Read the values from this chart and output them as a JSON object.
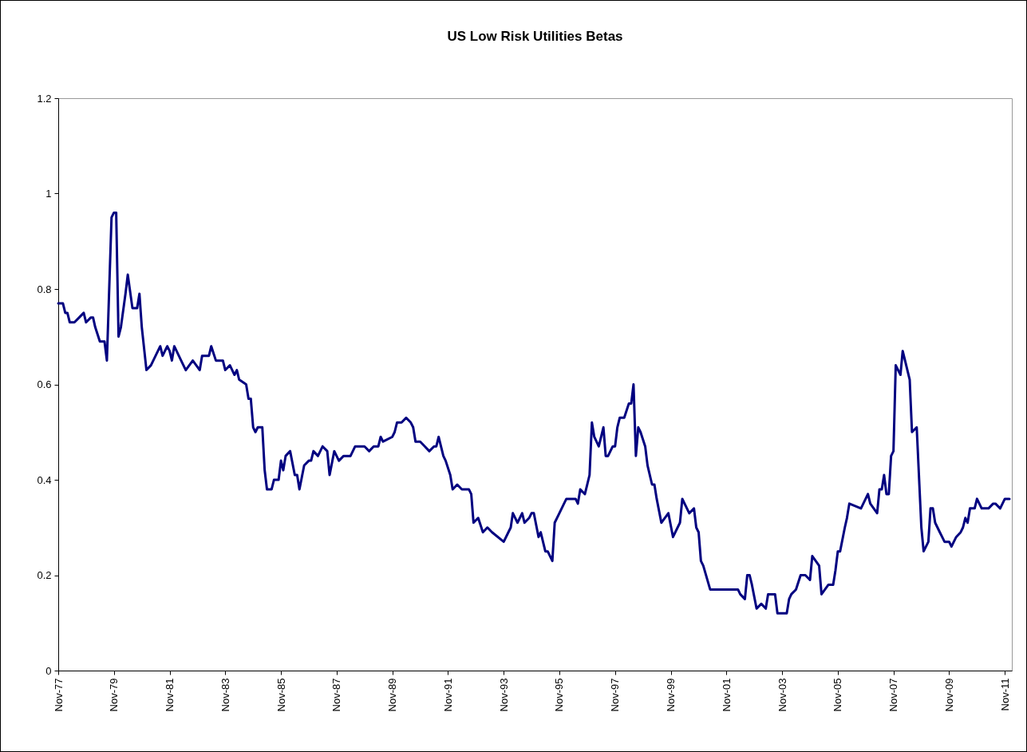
{
  "chart_data": {
    "type": "line",
    "title": "US Low Risk Utilities Betas",
    "x": [
      "1977-11",
      "1978-01",
      "1978-02",
      "1978-03",
      "1978-04",
      "1978-06",
      "1978-08",
      "1978-10",
      "1978-11",
      "1979-01",
      "1979-02",
      "1979-03",
      "1979-05",
      "1979-07",
      "1979-08",
      "1979-10",
      "1979-11",
      "1979-12",
      "1980-01",
      "1980-02",
      "1980-04",
      "1980-05",
      "1980-07",
      "1980-09",
      "1980-10",
      "1980-11",
      "1981-01",
      "1981-03",
      "1981-05",
      "1981-07",
      "1981-08",
      "1981-10",
      "1981-11",
      "1981-12",
      "1982-01",
      "1982-04",
      "1982-06",
      "1982-09",
      "1982-12",
      "1983-01",
      "1983-04",
      "1983-05",
      "1983-07",
      "1983-10",
      "1983-11",
      "1984-01",
      "1984-03",
      "1984-04",
      "1984-05",
      "1984-08",
      "1984-09",
      "1984-10",
      "1984-11",
      "1984-12",
      "1985-01",
      "1985-03",
      "1985-04",
      "1985-05",
      "1985-07",
      "1985-08",
      "1985-10",
      "1985-11",
      "1985-12",
      "1986-01",
      "1986-03",
      "1986-05",
      "1986-06",
      "1986-07",
      "1986-09",
      "1986-11",
      "1986-12",
      "1987-01",
      "1987-03",
      "1987-05",
      "1987-07",
      "1987-08",
      "1987-10",
      "1987-12",
      "1988-02",
      "1988-05",
      "1988-07",
      "1988-11",
      "1989-01",
      "1989-03",
      "1989-05",
      "1989-06",
      "1989-07",
      "1989-11",
      "1989-12",
      "1990-01",
      "1990-03",
      "1990-05",
      "1990-07",
      "1990-08",
      "1990-09",
      "1990-11",
      "1991-01",
      "1991-03",
      "1991-05",
      "1991-06",
      "1991-07",
      "1991-09",
      "1991-10",
      "1991-12",
      "1992-01",
      "1992-03",
      "1992-05",
      "1992-08",
      "1992-09",
      "1992-10",
      "1992-12",
      "1993-02",
      "1993-04",
      "1993-06",
      "1993-11",
      "1994-01",
      "1994-02",
      "1994-03",
      "1994-05",
      "1994-07",
      "1994-08",
      "1994-10",
      "1994-11",
      "1994-12",
      "1995-02",
      "1995-03",
      "1995-05",
      "1995-06",
      "1995-08",
      "1995-09",
      "1995-11",
      "1996-01",
      "1996-02",
      "1996-06",
      "1996-07",
      "1996-08",
      "1996-10",
      "1996-11",
      "1996-12",
      "1997-01",
      "1997-02",
      "1997-04",
      "1997-06",
      "1997-07",
      "1997-08",
      "1997-10",
      "1997-11",
      "1997-12",
      "1998-01",
      "1998-03",
      "1998-05",
      "1998-06",
      "1998-07",
      "1998-08",
      "1998-09",
      "1998-10",
      "1998-12",
      "1999-01",
      "1999-03",
      "1999-04",
      "1999-05",
      "1999-07",
      "1999-10",
      "1999-12",
      "2000-03",
      "2000-04",
      "2000-05",
      "2000-07",
      "2000-09",
      "2000-10",
      "2000-11",
      "2000-12",
      "2001-01",
      "2001-04",
      "2001-06",
      "2001-07",
      "2001-09",
      "2001-12",
      "2002-02",
      "2002-04",
      "2002-05",
      "2002-07",
      "2002-08",
      "2002-09",
      "2002-10",
      "2002-12",
      "2003-02",
      "2003-04",
      "2003-05",
      "2003-08",
      "2003-09",
      "2003-12",
      "2004-01",
      "2004-02",
      "2004-03",
      "2004-05",
      "2004-07",
      "2004-09",
      "2004-11",
      "2004-12",
      "2005-03",
      "2005-04",
      "2005-07",
      "2005-09",
      "2005-10",
      "2005-11",
      "2005-12",
      "2006-02",
      "2006-03",
      "2006-04",
      "2006-09",
      "2006-12",
      "2007-01",
      "2007-04",
      "2007-05",
      "2007-06",
      "2007-07",
      "2007-08",
      "2007-09",
      "2007-10",
      "2007-11",
      "2007-12",
      "2008-02",
      "2008-03",
      "2008-04",
      "2008-06",
      "2008-07",
      "2008-09",
      "2008-11",
      "2008-12",
      "2009-02",
      "2009-03",
      "2009-04",
      "2009-05",
      "2009-07",
      "2009-08",
      "2009-09",
      "2009-11",
      "2009-12",
      "2010-02",
      "2010-04",
      "2010-05",
      "2010-06",
      "2010-07",
      "2010-08",
      "2010-10",
      "2010-11",
      "2011-01",
      "2011-04",
      "2011-06",
      "2011-07",
      "2011-09",
      "2011-11",
      "2012-01"
    ],
    "series": [
      {
        "color": "#000080",
        "values": [
          0.77,
          0.77,
          0.75,
          0.75,
          0.73,
          0.73,
          0.74,
          0.75,
          0.73,
          0.74,
          0.74,
          0.72,
          0.69,
          0.69,
          0.65,
          0.95,
          0.96,
          0.96,
          0.7,
          0.72,
          0.79,
          0.83,
          0.76,
          0.76,
          0.79,
          0.72,
          0.63,
          0.64,
          0.66,
          0.68,
          0.66,
          0.68,
          0.67,
          0.65,
          0.68,
          0.65,
          0.63,
          0.65,
          0.63,
          0.66,
          0.66,
          0.68,
          0.65,
          0.65,
          0.63,
          0.64,
          0.62,
          0.63,
          0.61,
          0.6,
          0.57,
          0.57,
          0.51,
          0.5,
          0.51,
          0.51,
          0.42,
          0.38,
          0.38,
          0.4,
          0.4,
          0.44,
          0.42,
          0.45,
          0.46,
          0.41,
          0.41,
          0.38,
          0.43,
          0.44,
          0.44,
          0.46,
          0.45,
          0.47,
          0.46,
          0.41,
          0.46,
          0.44,
          0.45,
          0.45,
          0.47,
          0.47,
          0.46,
          0.47,
          0.47,
          0.49,
          0.48,
          0.49,
          0.5,
          0.52,
          0.52,
          0.53,
          0.52,
          0.51,
          0.48,
          0.48,
          0.47,
          0.46,
          0.47,
          0.47,
          0.49,
          0.45,
          0.44,
          0.41,
          0.38,
          0.39,
          0.38,
          0.38,
          0.37,
          0.31,
          0.32,
          0.29,
          0.3,
          0.29,
          0.27,
          0.29,
          0.3,
          0.33,
          0.31,
          0.33,
          0.31,
          0.32,
          0.33,
          0.33,
          0.28,
          0.29,
          0.25,
          0.25,
          0.23,
          0.31,
          0.33,
          0.35,
          0.36,
          0.36,
          0.35,
          0.38,
          0.37,
          0.39,
          0.41,
          0.52,
          0.49,
          0.47,
          0.51,
          0.45,
          0.45,
          0.47,
          0.47,
          0.51,
          0.53,
          0.53,
          0.56,
          0.56,
          0.6,
          0.45,
          0.51,
          0.5,
          0.47,
          0.43,
          0.39,
          0.39,
          0.36,
          0.31,
          0.33,
          0.28,
          0.31,
          0.36,
          0.35,
          0.33,
          0.34,
          0.3,
          0.29,
          0.23,
          0.22,
          0.17,
          0.17,
          0.17,
          0.17,
          0.17,
          0.17,
          0.17,
          0.16,
          0.15,
          0.2,
          0.2,
          0.18,
          0.13,
          0.14,
          0.13,
          0.16,
          0.16,
          0.12,
          0.12,
          0.12,
          0.15,
          0.16,
          0.17,
          0.2,
          0.2,
          0.19,
          0.24,
          0.22,
          0.16,
          0.18,
          0.18,
          0.21,
          0.25,
          0.25,
          0.3,
          0.32,
          0.35,
          0.34,
          0.37,
          0.35,
          0.33,
          0.38,
          0.38,
          0.41,
          0.37,
          0.37,
          0.45,
          0.46,
          0.64,
          0.62,
          0.67,
          0.65,
          0.61,
          0.5,
          0.51,
          0.3,
          0.25,
          0.27,
          0.34,
          0.34,
          0.31,
          0.29,
          0.28,
          0.27,
          0.27,
          0.26,
          0.28,
          0.29,
          0.3,
          0.32,
          0.31,
          0.34,
          0.34,
          0.36,
          0.34,
          0.34,
          0.35,
          0.35,
          0.34,
          0.36,
          0.36
        ]
      }
    ],
    "xlim": [
      "1977-11",
      "2012-02"
    ],
    "xticks": [
      {
        "value": "1977-11",
        "label": "Nov-77"
      },
      {
        "value": "1979-11",
        "label": "Nov-79"
      },
      {
        "value": "1981-11",
        "label": "Nov-81"
      },
      {
        "value": "1983-11",
        "label": "Nov-83"
      },
      {
        "value": "1985-11",
        "label": "Nov-85"
      },
      {
        "value": "1987-11",
        "label": "Nov-87"
      },
      {
        "value": "1989-11",
        "label": "Nov-89"
      },
      {
        "value": "1991-11",
        "label": "Nov-91"
      },
      {
        "value": "1993-11",
        "label": "Nov-93"
      },
      {
        "value": "1995-11",
        "label": "Nov-95"
      },
      {
        "value": "1997-11",
        "label": "Nov-97"
      },
      {
        "value": "1999-11",
        "label": "Nov-99"
      },
      {
        "value": "2001-11",
        "label": "Nov-01"
      },
      {
        "value": "2003-11",
        "label": "Nov-03"
      },
      {
        "value": "2005-11",
        "label": "Nov-05"
      },
      {
        "value": "2007-11",
        "label": "Nov-07"
      },
      {
        "value": "2009-11",
        "label": "Nov-09"
      },
      {
        "value": "2011-11",
        "label": "Nov-11"
      }
    ],
    "ylim": [
      0,
      1.2
    ],
    "yticks": [
      0,
      0.2,
      0.4,
      0.6,
      0.8,
      1,
      1.2
    ],
    "grid": false,
    "legend": false,
    "marker": "none",
    "line_style": "solid"
  }
}
